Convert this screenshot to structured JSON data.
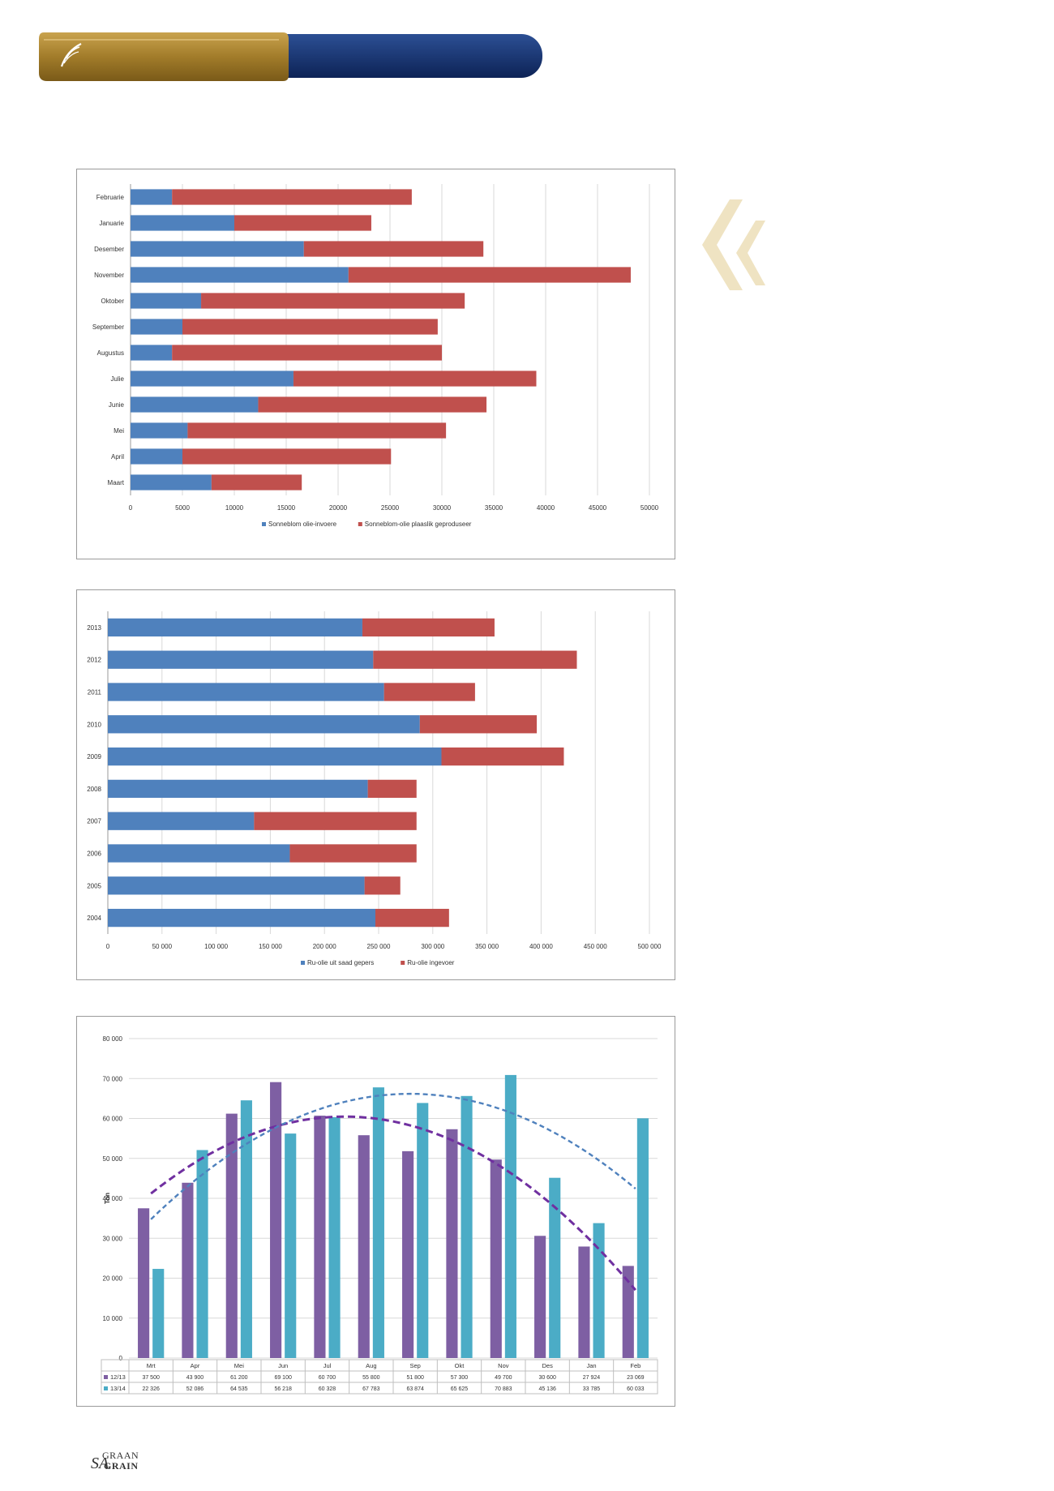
{
  "header": {
    "accent_gold": "#a27c2a",
    "accent_navy": "#14306b"
  },
  "footer": {
    "logo_top": "GRAAN",
    "logo_prefix": "SA",
    "logo_bottom": "GRAIN"
  },
  "colors": {
    "blue": "#4f81bd",
    "red": "#c0504d",
    "purple": "#7e5fa3",
    "teal": "#4bacc6",
    "quote": "#efe3c2"
  },
  "chart_data": [
    {
      "type": "bar",
      "orientation": "horizontal",
      "stacked": true,
      "categories": [
        "Februarie",
        "Januarie",
        "Desember",
        "November",
        "Oktober",
        "September",
        "Augustus",
        "Julie",
        "Junie",
        "Mei",
        "April",
        "Maart"
      ],
      "series": [
        {
          "name": "Sonneblom olie-invoere",
          "values": [
            4000,
            10000,
            16700,
            21000,
            6800,
            5000,
            4000,
            15700,
            12300,
            5500,
            5000,
            7800
          ]
        },
        {
          "name": "Sonneblom-olie plaaslik geproduseer",
          "values": [
            23100,
            13200,
            17300,
            27200,
            25400,
            24600,
            26000,
            23400,
            22000,
            24900,
            20100,
            8700
          ]
        }
      ],
      "x_ticks": [
        "0",
        "5000",
        "10000",
        "15000",
        "20000",
        "25000",
        "30000",
        "35000",
        "40000",
        "45000",
        "50000"
      ],
      "xlim": [
        0,
        50000
      ],
      "grid": "vertical",
      "legend": "bottom"
    },
    {
      "type": "bar",
      "orientation": "horizontal",
      "stacked": true,
      "categories": [
        "2013",
        "2012",
        "2011",
        "2010",
        "2009",
        "2008",
        "2007",
        "2006",
        "2005",
        "2004"
      ],
      "series": [
        {
          "name": "Ru-olie uit saad gepers",
          "values": [
            235000,
            245000,
            255000,
            288000,
            308000,
            240000,
            135000,
            168000,
            237000,
            247000
          ]
        },
        {
          "name": "Ru-olie ingevoer",
          "values": [
            122000,
            188000,
            84000,
            108000,
            113000,
            45000,
            150000,
            117000,
            33000,
            68000
          ]
        }
      ],
      "x_ticks": [
        "0",
        "50 000",
        "100 000",
        "150 000",
        "200 000",
        "250 000",
        "300 000",
        "350 000",
        "400 000",
        "450 000",
        "500 000"
      ],
      "xlim": [
        0,
        500000
      ],
      "grid": "vertical",
      "legend": "bottom"
    },
    {
      "type": "bar",
      "categories": [
        "Mrt",
        "Apr",
        "Mei",
        "Jun",
        "Jul",
        "Aug",
        "Sep",
        "Okt",
        "Nov",
        "Des",
        "Jan",
        "Feb"
      ],
      "series": [
        {
          "name": "12/13",
          "values": [
            37500,
            43900,
            61200,
            69100,
            60700,
            55800,
            51800,
            57300,
            49700,
            30600,
            27924,
            23069
          ],
          "labels": [
            "37 500",
            "43 900",
            "61 200",
            "69 100",
            "60 700",
            "55 800",
            "51 800",
            "57 300",
            "49 700",
            "30 600",
            "27 924",
            "23 069"
          ]
        },
        {
          "name": "13/14",
          "values": [
            22326,
            52086,
            64535,
            56218,
            60328,
            67783,
            63874,
            65625,
            70883,
            45136,
            33785,
            60033
          ],
          "labels": [
            "22 326",
            "52 086",
            "64 535",
            "56 218",
            "60 328",
            "67 783",
            "63 874",
            "65 625",
            "70 883",
            "45 136",
            "33 785",
            "60 033"
          ]
        }
      ],
      "ylabel": "Ton",
      "y_ticks": [
        "0",
        "10 000",
        "20 000",
        "30 000",
        "40 000",
        "50 000",
        "60 000",
        "70 000",
        "80 000"
      ],
      "ylim": [
        0,
        80000
      ],
      "trendlines": "polynomial",
      "grid": "horizontal",
      "legend": "data table"
    }
  ]
}
